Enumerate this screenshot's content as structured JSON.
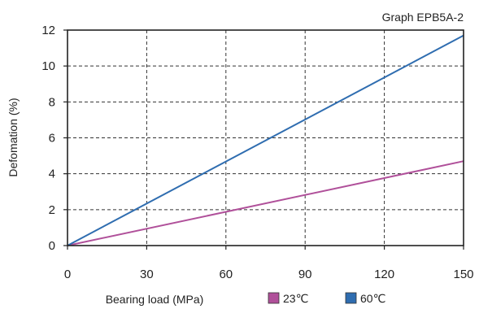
{
  "chart_data": {
    "type": "line",
    "title": "Graph EPB5A-2",
    "xlabel": "Bearing load (MPa)",
    "ylabel": "Defomation (%)",
    "xlim": [
      0,
      150
    ],
    "ylim": [
      0,
      12
    ],
    "x_ticks": [
      "0",
      "30",
      "60",
      "90",
      "120",
      "150"
    ],
    "y_ticks": [
      "0",
      "2",
      "4",
      "6",
      "8",
      "10",
      "12"
    ],
    "grid": true,
    "legend_position": "bottom",
    "series": [
      {
        "name": "23℃",
        "color": "#b0509a",
        "x": [
          0,
          150
        ],
        "y": [
          0,
          4.7
        ]
      },
      {
        "name": "60℃",
        "color": "#2f6db0",
        "x": [
          0,
          150
        ],
        "y": [
          0,
          11.7
        ]
      }
    ]
  }
}
